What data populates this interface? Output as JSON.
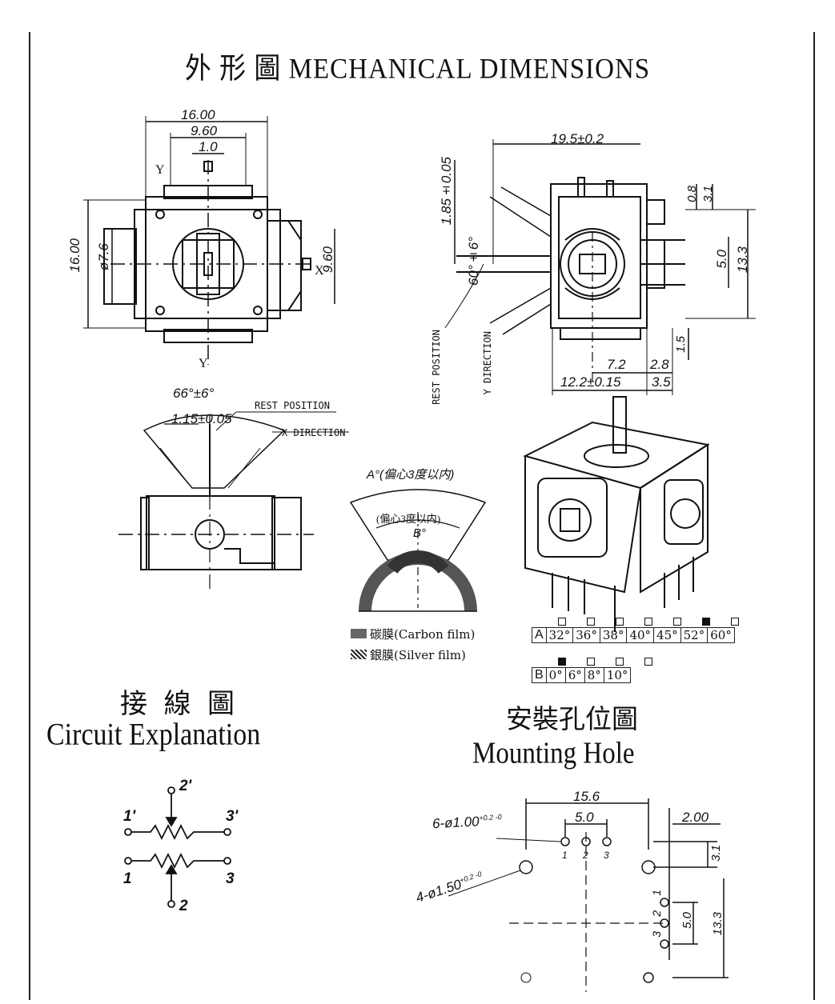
{
  "title": "外 形 圖   MECHANICAL DIMENSIONS",
  "top_view": {
    "dim_width": "16.00",
    "dim_inner": "9.60",
    "dim_slot": "1.0",
    "dim_height": "16.00",
    "dim_dia": "ø7.6",
    "dim_side": "9.60",
    "axis_y_top": "Y",
    "axis_y_bottom": "Y",
    "axis_x": "X"
  },
  "side_view": {
    "dim_width": "19.5±0.2",
    "dim_height_offset": "1.85±0.05",
    "dim_angle": "60°±6°",
    "dim_08": "0.8",
    "dim_31": "3.1",
    "dim_50": "5.0",
    "dim_133": "13.3",
    "dim_72": "7.2",
    "dim_28": "2.8",
    "dim_122": "12.2±0.15",
    "dim_35": "3.5",
    "dim_15": "1.5",
    "rest_position": "REST POSITION",
    "y_direction": "Y DIRECTION"
  },
  "front_view": {
    "dim_angle": "66°±6°",
    "dim_offset": "1.15±0.05",
    "rest_position": "REST POSITION",
    "x_direction": "X DIRECTION"
  },
  "resistor_detail": {
    "label_a": "A°(偏心3度以内)",
    "label_inner": "(偏心3度以内)",
    "label_b": "B°"
  },
  "legend": {
    "carbon": "碳膜(Carbon film)",
    "silver": "銀膜(Silver film)"
  },
  "angle_table": {
    "row_a_label": "A",
    "row_a": [
      "32°",
      "36°",
      "38°",
      "40°",
      "45°",
      "52°",
      "60°"
    ],
    "row_a_selected": 5,
    "row_b_label": "B",
    "row_b": [
      "0°",
      "6°",
      "8°",
      "10°"
    ],
    "row_b_selected": 0
  },
  "circuit": {
    "title_cn": "接 線 圖",
    "title_en": "Circuit Explanation",
    "pin_2p": "2'",
    "pin_1p": "1'",
    "pin_3p": "3'",
    "pin_1": "1",
    "pin_3": "3",
    "pin_2": "2"
  },
  "mounting": {
    "title_cn": "安裝孔位圖",
    "title_en": "Mounting Hole",
    "dim_156": "15.6",
    "dim_50": "5.0",
    "dim_200": "2.00",
    "hole_small": "6-ø1.00",
    "hole_small_tol": "+0.2 -0",
    "hole_large": "4-ø1.50",
    "hole_large_tol": "+0.2 -0",
    "dim_31": "3.1",
    "dim_50v": "5.0",
    "dim_133": "13.3",
    "pin1": "1",
    "pin2": "2",
    "pin3": "3",
    "pin1v": "1",
    "pin2v": "2",
    "pin3v": "3"
  }
}
